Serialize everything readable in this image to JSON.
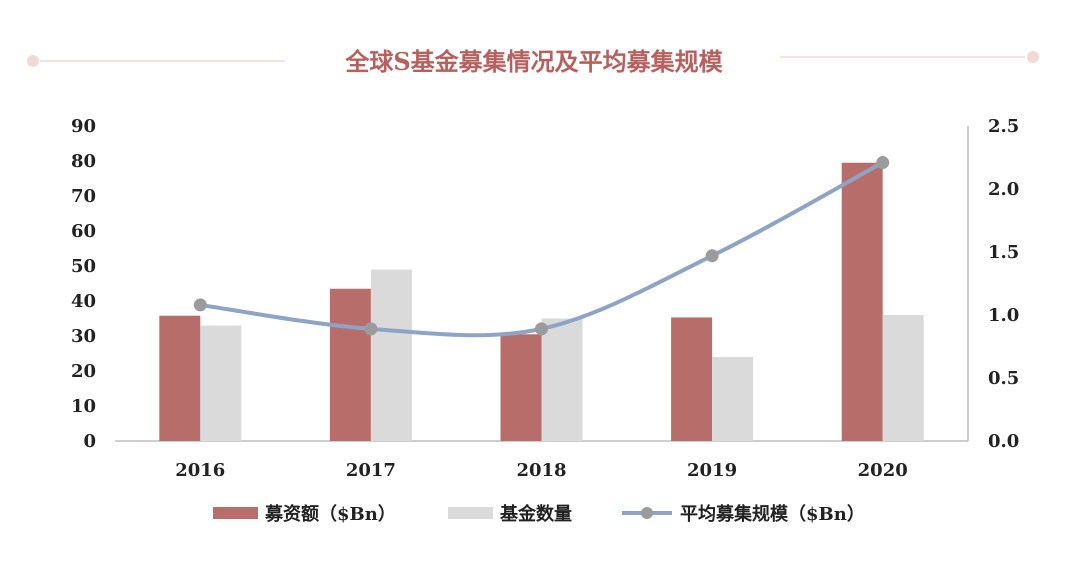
{
  "colors": {
    "title": "#B5615E",
    "bar_amount": "#B76E6B",
    "bar_count": "#DADADA",
    "line": "#8EA4C5",
    "marker": "#9B9B9B",
    "axis": "#BDBDBD",
    "deco": "#F0D9D7"
  },
  "chart_data": {
    "type": "bar",
    "title": "全球S基金募集情况及平均募集规模",
    "categories": [
      "2016",
      "2017",
      "2018",
      "2019",
      "2020"
    ],
    "series": [
      {
        "name": "募资额（$Bn）",
        "type": "bar",
        "axis": "left",
        "values": [
          35.8,
          43.5,
          30.5,
          35.3,
          79.5
        ]
      },
      {
        "name": "基金数量",
        "type": "bar",
        "axis": "left",
        "values": [
          33,
          49,
          35,
          24,
          36
        ]
      },
      {
        "name": "平均募集规模（$Bn）",
        "type": "line",
        "axis": "right",
        "values": [
          1.08,
          0.89,
          0.89,
          1.47,
          2.21
        ]
      }
    ],
    "left_axis": {
      "ylim": [
        0,
        90
      ],
      "ticks": [
        "0",
        "10",
        "20",
        "30",
        "40",
        "50",
        "60",
        "70",
        "80",
        "90"
      ]
    },
    "right_axis": {
      "ylim": [
        0,
        2.5
      ],
      "ticks": [
        "0.0",
        "0.5",
        "1.0",
        "1.5",
        "2.0",
        "2.5"
      ]
    },
    "legend_position": "bottom",
    "grid": false
  }
}
